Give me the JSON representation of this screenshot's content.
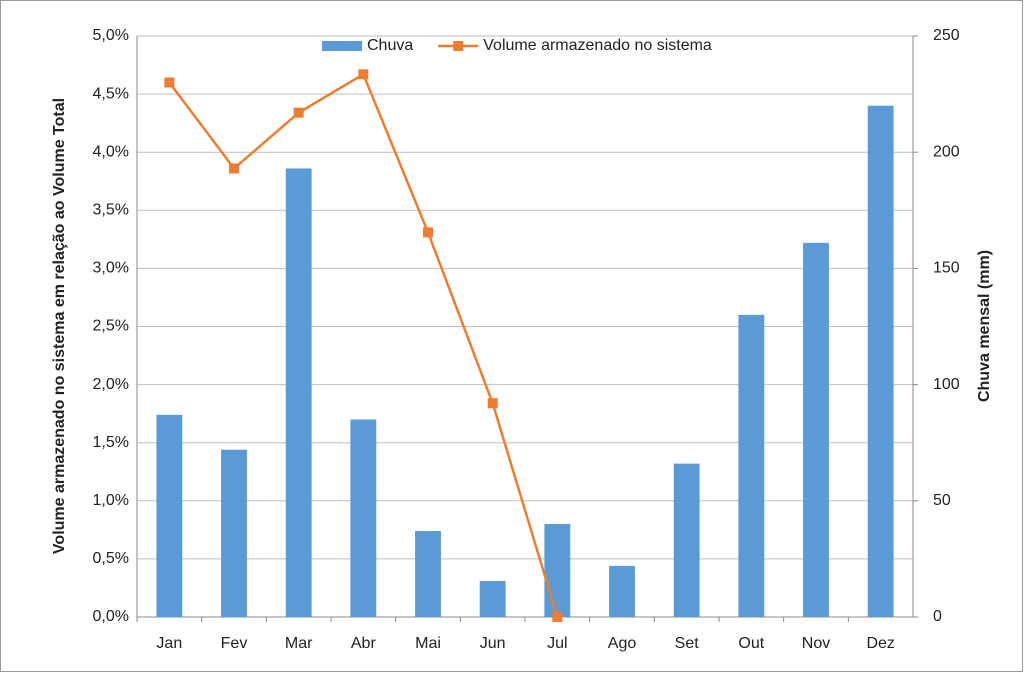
{
  "chart_data": {
    "type": "bar-line",
    "categories": [
      "Jan",
      "Fev",
      "Mar",
      "Abr",
      "Mai",
      "Jun",
      "Jul",
      "Ago",
      "Set",
      "Out",
      "Nov",
      "Dez"
    ],
    "series": [
      {
        "name": "Chuva",
        "color": "#5b9bd5",
        "type": "bar",
        "axis": "y2",
        "values": [
          87,
          72,
          193,
          85,
          37,
          15.5,
          40,
          22,
          66,
          130,
          161,
          220
        ]
      },
      {
        "name": "Volume armazenado no sistema",
        "color": "#ed7d31",
        "type": "line",
        "axis": "y",
        "values": [
          4.6,
          3.86,
          4.34,
          4.67,
          3.31,
          1.84,
          0,
          null,
          null,
          null,
          null,
          null
        ]
      }
    ],
    "ylabel": "Volume armazenado no sistema em relação ao Volume Total",
    "y2label": "Chuva mensal (mm)",
    "ylim": [
      0,
      5
    ],
    "yticks": [
      {
        "value": 0,
        "label": "0,0%"
      },
      {
        "value": 0.5,
        "label": "0,5%"
      },
      {
        "value": 1,
        "label": "1,0%"
      },
      {
        "value": 1.5,
        "label": "1,5%"
      },
      {
        "value": 2,
        "label": "2,0%"
      },
      {
        "value": 2.5,
        "label": "2,5%"
      },
      {
        "value": 3,
        "label": "3,0%"
      },
      {
        "value": 3.5,
        "label": "3,5%"
      },
      {
        "value": 4,
        "label": "4,0%"
      },
      {
        "value": 4.5,
        "label": "4,5%"
      },
      {
        "value": 5,
        "label": "5,0%"
      }
    ],
    "y2lim": [
      0,
      250
    ],
    "y2ticks": [
      0,
      50,
      100,
      150,
      200,
      250
    ],
    "grid": true,
    "legend": "top"
  }
}
